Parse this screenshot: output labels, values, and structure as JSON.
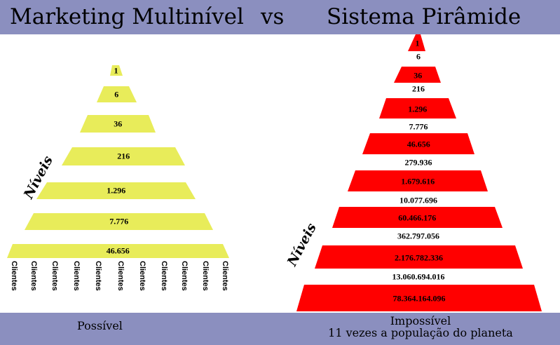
{
  "header": {
    "left_title": "Marketing Multinível",
    "vs": "vs",
    "right_title": "Sistema Pirâmide"
  },
  "left_pyramid": {
    "axis_label": "Níveis",
    "levels": [
      "1",
      "6",
      "36",
      "216",
      "1.296",
      "7.776",
      "46.656"
    ],
    "clients_label": "Clientes",
    "footer": "Possível"
  },
  "right_pyramid": {
    "axis_label": "Níveis",
    "bar_values": [
      "1",
      "36",
      "1.296",
      "46.656",
      "1.679.616",
      "60.466.176",
      "2.176.782.336",
      "78.364.164.096"
    ],
    "gap_values": [
      "6",
      "216",
      "7.776",
      "279.936",
      "10.077.696",
      "362.797.056",
      "13.060.694.016"
    ],
    "footer_line1": "Impossível",
    "footer_line2": "11 vezes a população do planeta"
  },
  "colors": {
    "band": "#8b8fbf",
    "left_fill": "#e8ec5a",
    "right_fill": "#ff0000"
  }
}
